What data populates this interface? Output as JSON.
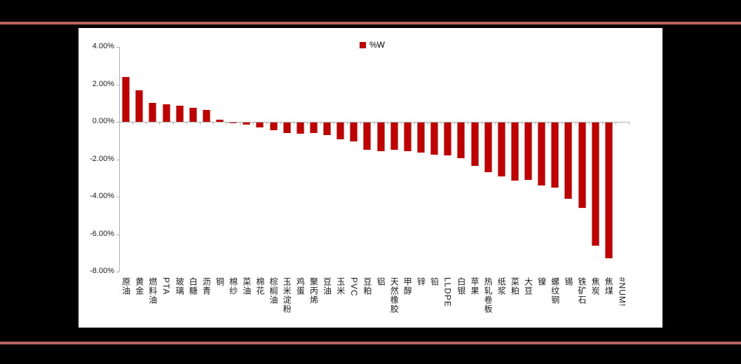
{
  "frame": {
    "background_color": "#000000",
    "card_color": "#ffffff",
    "divider_line_color": "#b96562"
  },
  "chart_data": {
    "type": "bar",
    "title": "",
    "legend_label": "%W",
    "legend_position": "top-center",
    "series_color": "#c00000",
    "axis_color": "#b0b0b0",
    "grid": false,
    "unit": "%",
    "ylim": [
      -8,
      4
    ],
    "yticks": [
      {
        "value": 4,
        "label": "4.00%"
      },
      {
        "value": 2,
        "label": "2.00%"
      },
      {
        "value": 0,
        "label": "0.00%"
      },
      {
        "value": -2,
        "label": "-2.00%"
      },
      {
        "value": -4,
        "label": "-4.00%"
      },
      {
        "value": -6,
        "label": "-6.00%"
      },
      {
        "value": -8,
        "label": "-8.00%"
      }
    ],
    "categories": [
      "原油",
      "黄金",
      "燃料油",
      "PTA",
      "玻璃",
      "白糖",
      "沥青",
      "铜",
      "棉纱",
      "菜油",
      "棉花",
      "棕榈油",
      "玉米淀粉",
      "鸡蛋",
      "聚丙烯",
      "豆油",
      "玉米",
      "PVC",
      "豆粕",
      "铝",
      "天然橡胶",
      "甲醇",
      "锌",
      "铅",
      "LLDPE",
      "白银",
      "苹果",
      "热轧卷板",
      "纸浆",
      "菜粕",
      "大豆",
      "镍",
      "螺纹钢",
      "锡",
      "铁矿石",
      "焦炭",
      "焦煤",
      "#NUM!"
    ],
    "values": [
      2.4,
      1.7,
      1.0,
      0.95,
      0.85,
      0.75,
      0.65,
      0.1,
      -0.07,
      -0.15,
      -0.3,
      -0.45,
      -0.6,
      -0.65,
      -0.6,
      -0.7,
      -0.95,
      -1.05,
      -1.5,
      -1.55,
      -1.5,
      -1.55,
      -1.65,
      -1.75,
      -1.8,
      -1.95,
      -2.35,
      -2.7,
      -2.9,
      -3.15,
      -3.1,
      -3.4,
      -3.5,
      -4.1,
      -4.6,
      -6.6,
      -7.3,
      null
    ]
  }
}
